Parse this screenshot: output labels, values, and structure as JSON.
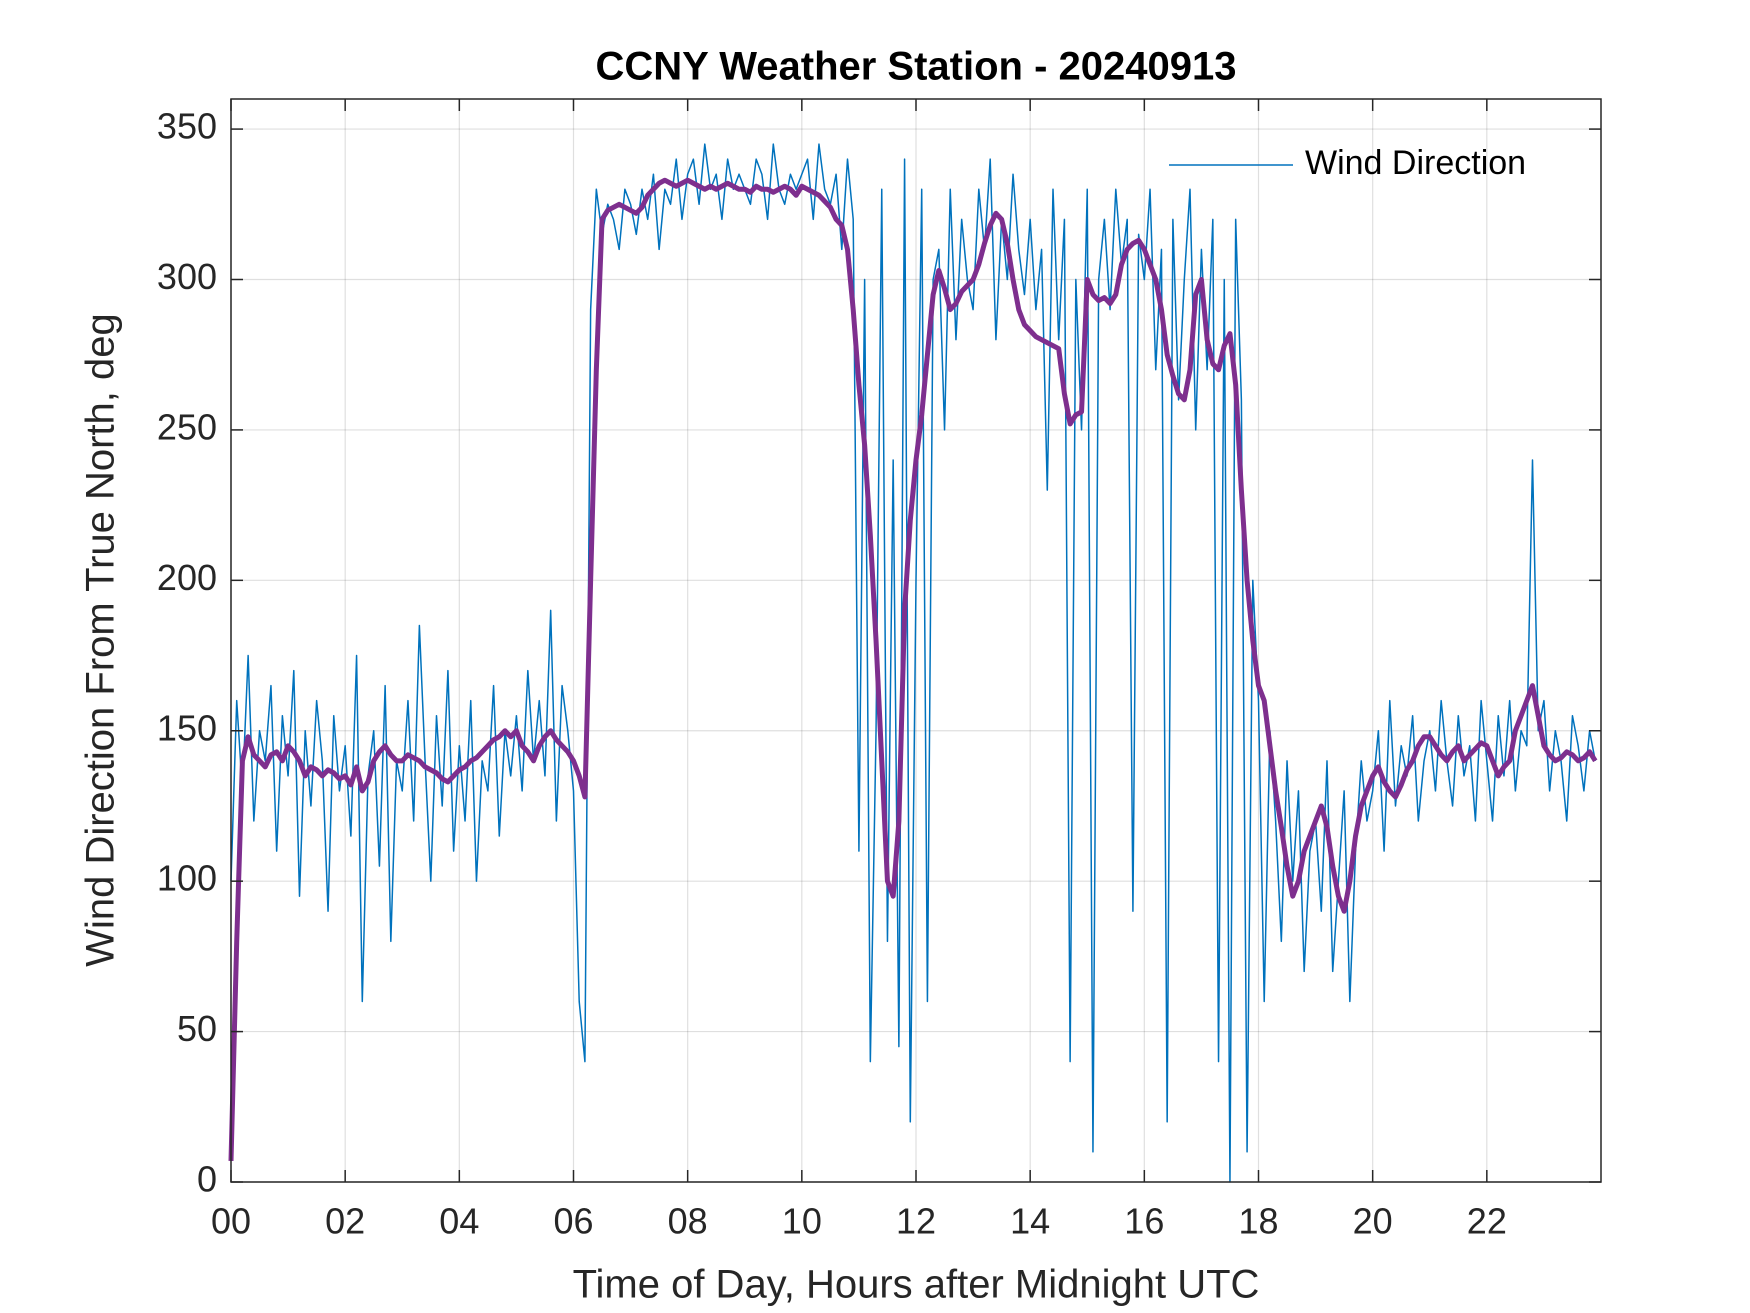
{
  "chart_data": {
    "type": "line",
    "title": "CCNY Weather Station - 20240913",
    "xlabel": "Time of Day, Hours after Midnight UTC",
    "ylabel": "Wind Direction From True North, deg",
    "xlim": [
      0,
      24
    ],
    "ylim": [
      0,
      360
    ],
    "xticks": [
      {
        "value": 0,
        "label": "00"
      },
      {
        "value": 2,
        "label": "02"
      },
      {
        "value": 4,
        "label": "04"
      },
      {
        "value": 6,
        "label": "06"
      },
      {
        "value": 8,
        "label": "08"
      },
      10,
      12,
      14,
      16,
      18,
      20,
      22
    ],
    "yticks": [
      0,
      50,
      100,
      150,
      200,
      250,
      300,
      350
    ],
    "grid": true,
    "legend": "upper right",
    "x": [
      0,
      0.1,
      0.2,
      0.3,
      0.4,
      0.5,
      0.6,
      0.7,
      0.8,
      0.9,
      1,
      1.1,
      1.2,
      1.3,
      1.4,
      1.5,
      1.6,
      1.7,
      1.8,
      1.9,
      2,
      2.1,
      2.2,
      2.3,
      2.4,
      2.5,
      2.6,
      2.7,
      2.8,
      2.9,
      3,
      3.1,
      3.2,
      3.3,
      3.4,
      3.5,
      3.6,
      3.7,
      3.8,
      3.9,
      4,
      4.1,
      4.2,
      4.3,
      4.4,
      4.5,
      4.6,
      4.7,
      4.8,
      4.9,
      5,
      5.1,
      5.2,
      5.3,
      5.4,
      5.5,
      5.6,
      5.7,
      5.8,
      5.9,
      6,
      6.1,
      6.2,
      6.3,
      6.4,
      6.5,
      6.6,
      6.7,
      6.8,
      6.9,
      7,
      7.1,
      7.2,
      7.3,
      7.4,
      7.5,
      7.6,
      7.7,
      7.8,
      7.9,
      8,
      8.1,
      8.2,
      8.3,
      8.4,
      8.5,
      8.6,
      8.7,
      8.8,
      8.9,
      9,
      9.1,
      9.2,
      9.3,
      9.4,
      9.5,
      9.6,
      9.7,
      9.8,
      9.9,
      10,
      10.1,
      10.2,
      10.3,
      10.4,
      10.5,
      10.6,
      10.7,
      10.8,
      10.9,
      11,
      11.1,
      11.2,
      11.3,
      11.4,
      11.5,
      11.6,
      11.7,
      11.8,
      11.9,
      12,
      12.1,
      12.2,
      12.3,
      12.4,
      12.5,
      12.6,
      12.7,
      12.8,
      12.9,
      13,
      13.1,
      13.2,
      13.3,
      13.4,
      13.5,
      13.6,
      13.7,
      13.8,
      13.9,
      14,
      14.1,
      14.2,
      14.3,
      14.4,
      14.5,
      14.6,
      14.7,
      14.8,
      14.9,
      15,
      15.1,
      15.2,
      15.3,
      15.4,
      15.5,
      15.6,
      15.7,
      15.8,
      15.9,
      16,
      16.1,
      16.2,
      16.3,
      16.4,
      16.5,
      16.6,
      16.7,
      16.8,
      16.9,
      17,
      17.1,
      17.2,
      17.3,
      17.4,
      17.5,
      17.6,
      17.7,
      17.8,
      17.9,
      18,
      18.1,
      18.2,
      18.3,
      18.4,
      18.5,
      18.6,
      18.7,
      18.8,
      18.9,
      19,
      19.1,
      19.2,
      19.3,
      19.4,
      19.5,
      19.6,
      19.7,
      19.8,
      19.9,
      20,
      20.1,
      20.2,
      20.3,
      20.4,
      20.5,
      20.6,
      20.7,
      20.8,
      20.9,
      21,
      21.1,
      21.2,
      21.3,
      21.4,
      21.5,
      21.6,
      21.7,
      21.8,
      21.9,
      22,
      22.1,
      22.2,
      22.3,
      22.4,
      22.5,
      22.6,
      22.7,
      22.8,
      22.9,
      23,
      23.1,
      23.2,
      23.3,
      23.4,
      23.5,
      23.6,
      23.7,
      23.8,
      23.9
    ],
    "series": [
      {
        "name": "Wind Direction",
        "color": "#0072bd",
        "width": 1.5,
        "values": [
          100,
          160,
          130,
          175,
          120,
          150,
          140,
          165,
          110,
          155,
          135,
          170,
          95,
          150,
          125,
          160,
          140,
          90,
          155,
          130,
          145,
          115,
          175,
          60,
          135,
          150,
          105,
          165,
          80,
          140,
          130,
          160,
          120,
          185,
          140,
          100,
          155,
          125,
          170,
          110,
          145,
          120,
          160,
          100,
          140,
          130,
          165,
          115,
          150,
          135,
          155,
          130,
          170,
          140,
          160,
          135,
          190,
          120,
          165,
          150,
          130,
          60,
          40,
          290,
          330,
          315,
          325,
          320,
          310,
          330,
          325,
          315,
          330,
          320,
          335,
          310,
          330,
          325,
          340,
          320,
          335,
          340,
          325,
          345,
          330,
          335,
          320,
          340,
          330,
          335,
          330,
          325,
          340,
          335,
          320,
          345,
          330,
          325,
          335,
          330,
          335,
          340,
          320,
          345,
          330,
          325,
          335,
          310,
          340,
          320,
          110,
          300,
          40,
          150,
          330,
          80,
          240,
          45,
          340,
          20,
          200,
          330,
          60,
          300,
          310,
          250,
          330,
          280,
          320,
          300,
          290,
          330,
          310,
          340,
          280,
          320,
          300,
          335,
          310,
          295,
          320,
          290,
          310,
          230,
          330,
          280,
          320,
          40,
          300,
          250,
          330,
          10,
          300,
          320,
          290,
          330,
          305,
          320,
          90,
          315,
          300,
          330,
          270,
          310,
          20,
          320,
          260,
          300,
          330,
          250,
          310,
          270,
          320,
          40,
          300,
          0,
          320,
          260,
          10,
          200,
          160,
          60,
          150,
          120,
          80,
          140,
          100,
          130,
          70,
          110,
          120,
          90,
          140,
          70,
          100,
          130,
          60,
          110,
          140,
          120,
          130,
          150,
          110,
          160,
          125,
          145,
          135,
          155,
          120,
          140,
          150,
          130,
          160,
          140,
          125,
          155,
          135,
          145,
          120,
          160,
          140,
          120,
          155,
          135,
          160,
          130,
          150,
          145,
          240,
          150,
          160,
          130,
          150,
          140,
          120,
          155,
          145,
          130,
          150,
          140
        ]
      },
      {
        "color": "#7e2f8e",
        "width": 5,
        "values": [
          7,
          80,
          140,
          148,
          142,
          140,
          138,
          142,
          143,
          140,
          145,
          143,
          140,
          135,
          138,
          137,
          135,
          137,
          136,
          134,
          135,
          132,
          138,
          130,
          133,
          140,
          143,
          145,
          142,
          140,
          140,
          142,
          141,
          140,
          138,
          137,
          136,
          134,
          133,
          135,
          137,
          138,
          140,
          141,
          143,
          145,
          147,
          148,
          150,
          148,
          150,
          145,
          143,
          140,
          145,
          148,
          150,
          147,
          145,
          143,
          140,
          135,
          128,
          200,
          270,
          320,
          323,
          324,
          325,
          324,
          323,
          322,
          324,
          328,
          330,
          332,
          333,
          332,
          331,
          332,
          333,
          332,
          331,
          330,
          331,
          330,
          331,
          332,
          331,
          330,
          330,
          329,
          331,
          330,
          330,
          329,
          330,
          331,
          330,
          328,
          331,
          330,
          329,
          328,
          326,
          324,
          320,
          318,
          310,
          290,
          265,
          245,
          215,
          180,
          140,
          100,
          95,
          120,
          190,
          220,
          240,
          255,
          275,
          295,
          303,
          297,
          290,
          292,
          296,
          298,
          300,
          305,
          312,
          318,
          322,
          320,
          312,
          300,
          290,
          285,
          283,
          281,
          280,
          279,
          278,
          277,
          262,
          252,
          255,
          256,
          300,
          295,
          293,
          294,
          292,
          295,
          305,
          310,
          312,
          313,
          310,
          305,
          300,
          290,
          275,
          268,
          262,
          260,
          270,
          295,
          300,
          280,
          272,
          270,
          278,
          282,
          265,
          230,
          200,
          180,
          165,
          160,
          145,
          130,
          118,
          105,
          95,
          100,
          110,
          115,
          120,
          125,
          118,
          105,
          95,
          90,
          100,
          115,
          125,
          130,
          135,
          138,
          133,
          130,
          128,
          132,
          137,
          140,
          145,
          148,
          148,
          145,
          142,
          140,
          143,
          145,
          140,
          142,
          144,
          146,
          145,
          140,
          135,
          138,
          140,
          150,
          155,
          160,
          165,
          155,
          145,
          142,
          140,
          141,
          143,
          142,
          140,
          141,
          143,
          140
        ]
      }
    ]
  }
}
